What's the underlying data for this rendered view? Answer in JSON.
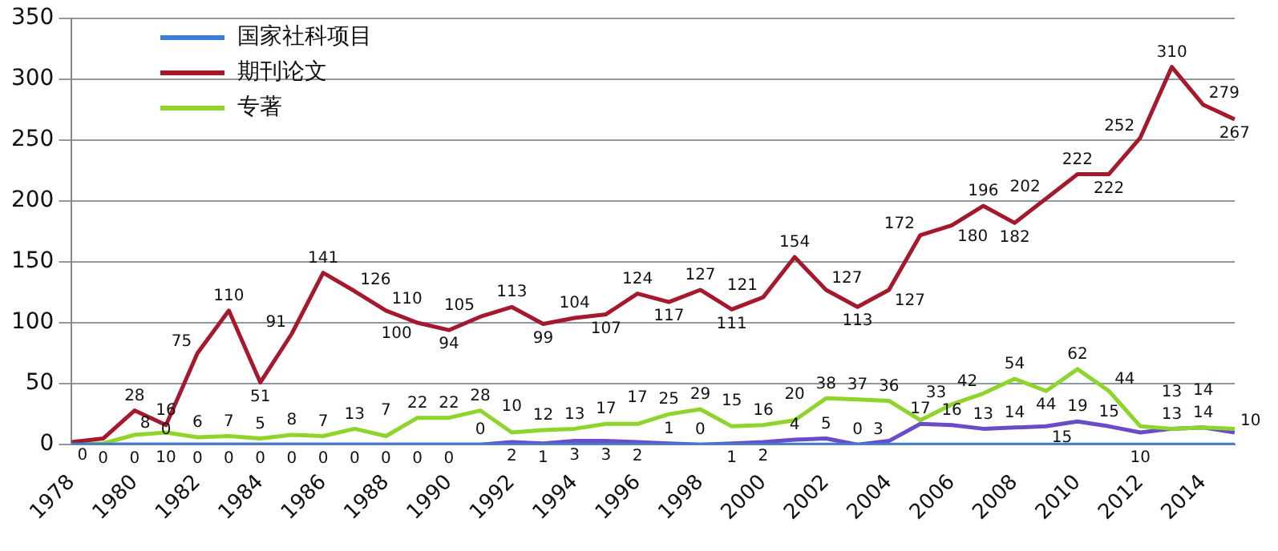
{
  "chart_data": {
    "type": "line",
    "categories": [
      "1978",
      null,
      "1980",
      null,
      "1982",
      null,
      "1984",
      null,
      "1986",
      null,
      "1988",
      null,
      "1990",
      null,
      "1992",
      null,
      "1994",
      null,
      "1996",
      null,
      "1998",
      null,
      "2000",
      null,
      "2002",
      null,
      "2004",
      null,
      "2006",
      null,
      "2008",
      null,
      "2010",
      null,
      "2012",
      null,
      "2014",
      null
    ],
    "series": [
      {
        "name": "国家社科项目",
        "color": "#3a7fd5",
        "values": [
          0,
          0,
          0,
          0,
          0,
          0,
          0,
          0,
          0,
          0,
          0,
          0,
          0,
          0,
          0,
          0,
          0,
          0,
          0,
          0,
          0,
          0,
          0,
          0,
          0,
          0,
          0,
          0,
          0,
          0,
          0,
          0,
          0,
          0,
          0,
          0,
          0,
          0
        ]
      },
      {
        "name": "期刊论文",
        "color": "#a5192e",
        "values": [
          2,
          5,
          28,
          16,
          75,
          110,
          51,
          91,
          141,
          126,
          110,
          100,
          94,
          105,
          113,
          99,
          104,
          107,
          124,
          117,
          127,
          111,
          121,
          154,
          127,
          113,
          127,
          172,
          180,
          196,
          182,
          202,
          222,
          222,
          252,
          310,
          279,
          267
        ],
        "value_labels": [
          null,
          null,
          "28",
          "16",
          "75",
          "110",
          "51",
          "91",
          "141",
          "126",
          "110",
          "100",
          "94",
          "105",
          "113",
          "99",
          "104",
          "107",
          "124",
          "117",
          "127",
          "111",
          "121",
          "154",
          "127",
          "113",
          "127",
          "172",
          "180",
          "196",
          "182",
          "202",
          "222",
          "222",
          "252",
          "310",
          "279",
          "267"
        ]
      },
      {
        "name": "专著",
        "color": "#8fd42a",
        "values": [
          0,
          1,
          8,
          10,
          6,
          7,
          5,
          8,
          7,
          13,
          7,
          22,
          22,
          28,
          10,
          12,
          13,
          17,
          17,
          25,
          29,
          15,
          16,
          20,
          38,
          37,
          36,
          20,
          33,
          42,
          54,
          44,
          62,
          44,
          15,
          13,
          14,
          13
        ],
        "value_labels": [
          null,
          null,
          "8",
          "10",
          "6",
          "7",
          "5",
          "8",
          "7",
          "13",
          "7",
          "22",
          "22",
          "28",
          "10",
          "12",
          "13",
          "17",
          "17",
          "25",
          "29",
          "15",
          "16",
          "20",
          "38",
          "37",
          "36",
          null,
          "33",
          "42",
          "54",
          "44",
          "62",
          "44",
          null,
          "13",
          "14",
          null
        ]
      },
      {
        "color": "#6a4cc8",
        "values": [
          0,
          0,
          0,
          0,
          0,
          0,
          0,
          0,
          0,
          0,
          0,
          0,
          0,
          0,
          2,
          1,
          3,
          3,
          2,
          1,
          0,
          1,
          2,
          4,
          5,
          0,
          3,
          17,
          16,
          13,
          14,
          15,
          19,
          15,
          10,
          13,
          14,
          10
        ],
        "value_labels": [
          "0",
          "0",
          "0",
          "0",
          "0",
          "0",
          "0",
          "0",
          "0",
          "0",
          "0",
          "0",
          "0",
          "0",
          "2",
          "1",
          "3",
          "3",
          "2",
          "1",
          "0",
          "1",
          "2",
          "4",
          "5",
          "0",
          "3",
          "17",
          "16",
          "13",
          "14",
          "15",
          "19",
          "15",
          "10",
          "13",
          "14",
          "10"
        ]
      }
    ],
    "ylim": [
      0,
      350
    ],
    "yticks": [
      0,
      50,
      100,
      150,
      200,
      250,
      300,
      350
    ],
    "grid": "y",
    "legend": "top left",
    "marker": "none"
  }
}
